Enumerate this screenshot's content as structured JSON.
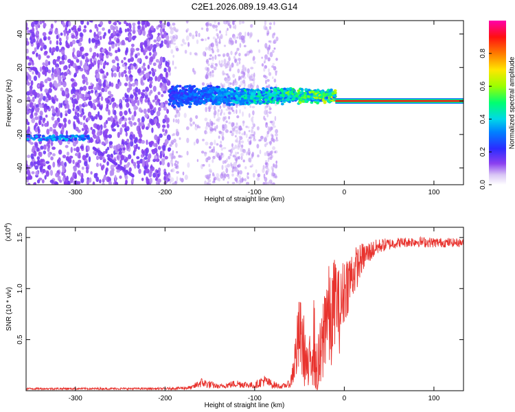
{
  "title": "C2E1.2026.089.19.43.G14",
  "chart_data": [
    {
      "type": "heatmap",
      "title": "C2E1.2026.089.19.43.G14",
      "xlabel": "Height of straight line (km)",
      "ylabel": "Frequency (Hz)",
      "xlim": [
        -355,
        133
      ],
      "ylim": [
        -50,
        48
      ],
      "xticks": [
        -300,
        -200,
        -100,
        0,
        100
      ],
      "yticks": [
        -40,
        -20,
        0,
        20,
        40
      ],
      "colorbar": {
        "label": "Normalized spectral amplitude",
        "range": [
          0,
          1
        ],
        "ticks": [
          "0.0",
          "0.2",
          "0.4",
          "0.6",
          "0.8"
        ],
        "tick_values": [
          0.0,
          0.2,
          0.4,
          0.6,
          0.8
        ]
      },
      "features": {
        "carrier_line_start_km": -10,
        "carrier_line_frequency_hz": 0,
        "dense_band_start_km": -195,
        "dense_band_end_km": -10,
        "streak_start_km": -355,
        "streak_end_km": -285,
        "streak_frequency_hz": -22
      }
    },
    {
      "type": "line",
      "xlabel": "Height of straight line (km)",
      "ylabel": "SNR (10 * v/v)",
      "y_multiplier_label": "(x10",
      "y_multiplier_exp": "4",
      "xlim": [
        -355,
        133
      ],
      "ylim": [
        0,
        1.6
      ],
      "xticks": [
        -300,
        -200,
        -100,
        0,
        100
      ],
      "yticks": [
        "0.5",
        "1.0",
        "1.5"
      ],
      "ytick_values": [
        0.5,
        1.0,
        1.5
      ],
      "series_color": "#e8332e",
      "series": [
        {
          "name": "SNR",
          "profile_x": [
            -355,
            -200,
            -170,
            -160,
            -150,
            -140,
            -120,
            -100,
            -90,
            -80,
            -70,
            -60,
            -55,
            -50,
            -45,
            -40,
            -35,
            -30,
            -25,
            -20,
            -15,
            -10,
            -5,
            0,
            10,
            20,
            30,
            40,
            60,
            80,
            100,
            133
          ],
          "profile_y": [
            0.02,
            0.02,
            0.03,
            0.08,
            0.06,
            0.04,
            0.07,
            0.05,
            0.1,
            0.06,
            0.04,
            0.07,
            0.3,
            0.55,
            0.4,
            0.15,
            0.55,
            0.2,
            0.35,
            0.85,
            0.6,
            0.95,
            0.75,
            1.0,
            1.15,
            1.3,
            1.37,
            1.42,
            1.45,
            1.46,
            1.45,
            1.45
          ],
          "noise_amp": [
            0.01,
            0.01,
            0.02,
            0.05,
            0.04,
            0.02,
            0.04,
            0.03,
            0.06,
            0.04,
            0.02,
            0.04,
            0.25,
            0.4,
            0.35,
            0.2,
            0.5,
            0.3,
            0.45,
            0.55,
            0.5,
            0.45,
            0.4,
            0.35,
            0.25,
            0.15,
            0.1,
            0.07,
            0.05,
            0.05,
            0.05,
            0.04
          ]
        }
      ]
    }
  ]
}
